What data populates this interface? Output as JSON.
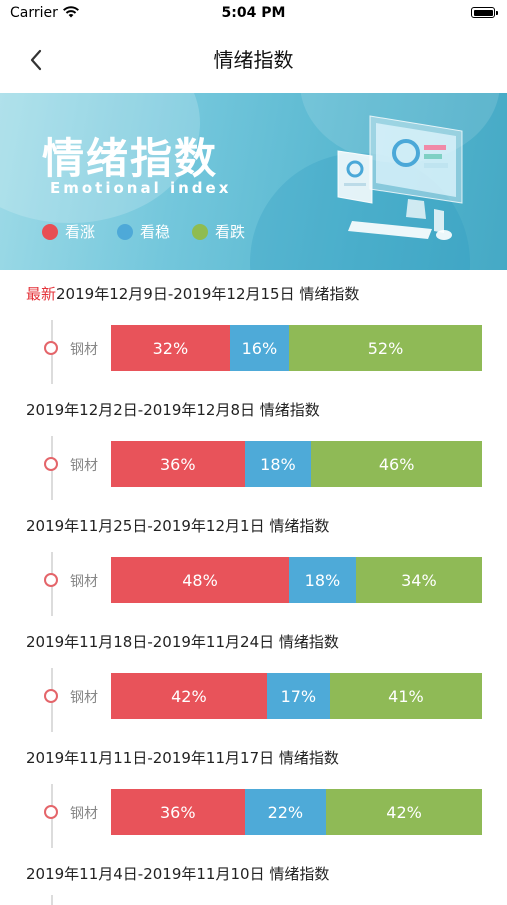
{
  "status_bar": {
    "carrier": "Carrier",
    "time": "5:04 PM"
  },
  "nav": {
    "title": "情绪指数"
  },
  "banner": {
    "title": "情绪指数",
    "subtitle": "Emotional index",
    "legend": [
      {
        "label": "看涨",
        "color": "#e84f54"
      },
      {
        "label": "看稳",
        "color": "#4ea9d8"
      },
      {
        "label": "看跌",
        "color": "#8fbc50"
      }
    ]
  },
  "colors": {
    "up": "#e8535a",
    "stable": "#4eaad8",
    "down": "#8fba56",
    "latest": "#e4333a"
  },
  "weeks": [
    {
      "tag": "最新",
      "range": "2019年12月9日-2019年12月15日 情绪指数",
      "label": "钢材",
      "up": 32,
      "stable": 16,
      "down": 52,
      "up_text": "32%",
      "stable_text": "16%",
      "down_text": "52%"
    },
    {
      "tag": "",
      "range": "2019年12月2日-2019年12月8日 情绪指数",
      "label": "钢材",
      "up": 36,
      "stable": 18,
      "down": 46,
      "up_text": "36%",
      "stable_text": "18%",
      "down_text": "46%"
    },
    {
      "tag": "",
      "range": "2019年11月25日-2019年12月1日 情绪指数",
      "label": "钢材",
      "up": 48,
      "stable": 18,
      "down": 34,
      "up_text": "48%",
      "stable_text": "18%",
      "down_text": "34%"
    },
    {
      "tag": "",
      "range": "2019年11月18日-2019年11月24日 情绪指数",
      "label": "钢材",
      "up": 42,
      "stable": 17,
      "down": 41,
      "up_text": "42%",
      "stable_text": "17%",
      "down_text": "41%"
    },
    {
      "tag": "",
      "range": "2019年11月11日-2019年11月17日 情绪指数",
      "label": "钢材",
      "up": 36,
      "stable": 22,
      "down": 42,
      "up_text": "36%",
      "stable_text": "22%",
      "down_text": "42%"
    },
    {
      "tag": "",
      "range": "2019年11月4日-2019年11月10日 情绪指数"
    }
  ]
}
